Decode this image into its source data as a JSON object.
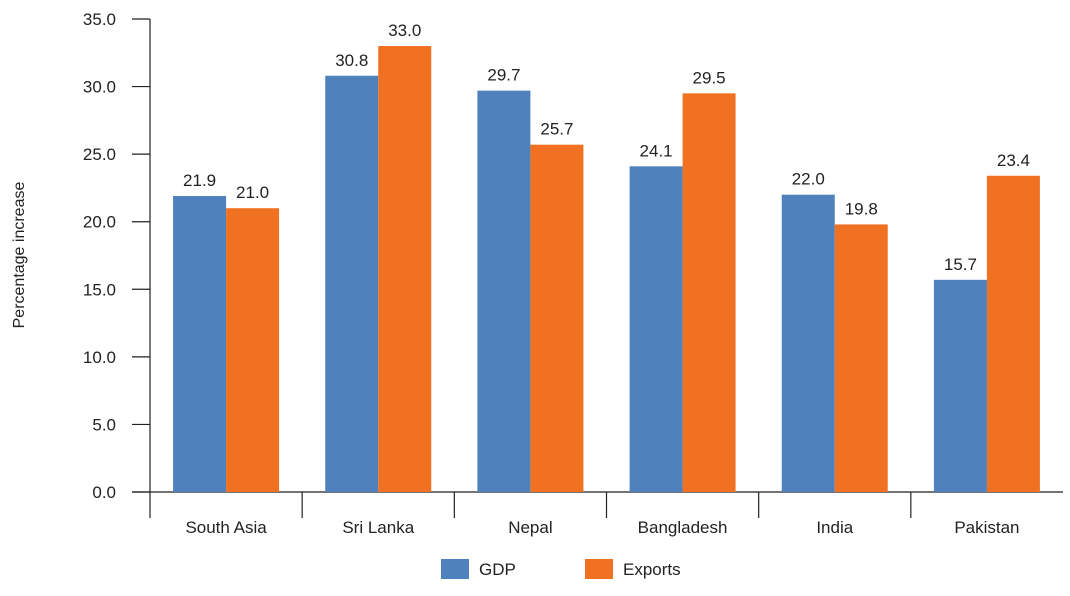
{
  "chart_data": {
    "type": "bar",
    "title": "",
    "xlabel": "",
    "ylabel": "Percentage increase",
    "ylim": [
      0,
      35
    ],
    "yticks": [
      "0.0",
      "5.0",
      "10.0",
      "15.0",
      "20.0",
      "25.0",
      "30.0",
      "35.0"
    ],
    "categories": [
      "South Asia",
      "Sri Lanka",
      "Nepal",
      "Bangladesh",
      "India",
      "Pakistan"
    ],
    "series": [
      {
        "name": "GDP",
        "color": "#4f81bd",
        "values": [
          21.9,
          30.8,
          29.7,
          24.1,
          22.0,
          15.7
        ],
        "labels": [
          "21.9",
          "30.8",
          "29.7",
          "24.1",
          "22.0",
          "15.7"
        ]
      },
      {
        "name": "Exports",
        "color": "#f07122",
        "values": [
          21.0,
          33.0,
          25.7,
          29.5,
          19.8,
          23.4
        ],
        "labels": [
          "21.0",
          "33.0",
          "25.7",
          "29.5",
          "19.8",
          "23.4"
        ]
      }
    ],
    "grid": false,
    "legend_position": "bottom"
  }
}
